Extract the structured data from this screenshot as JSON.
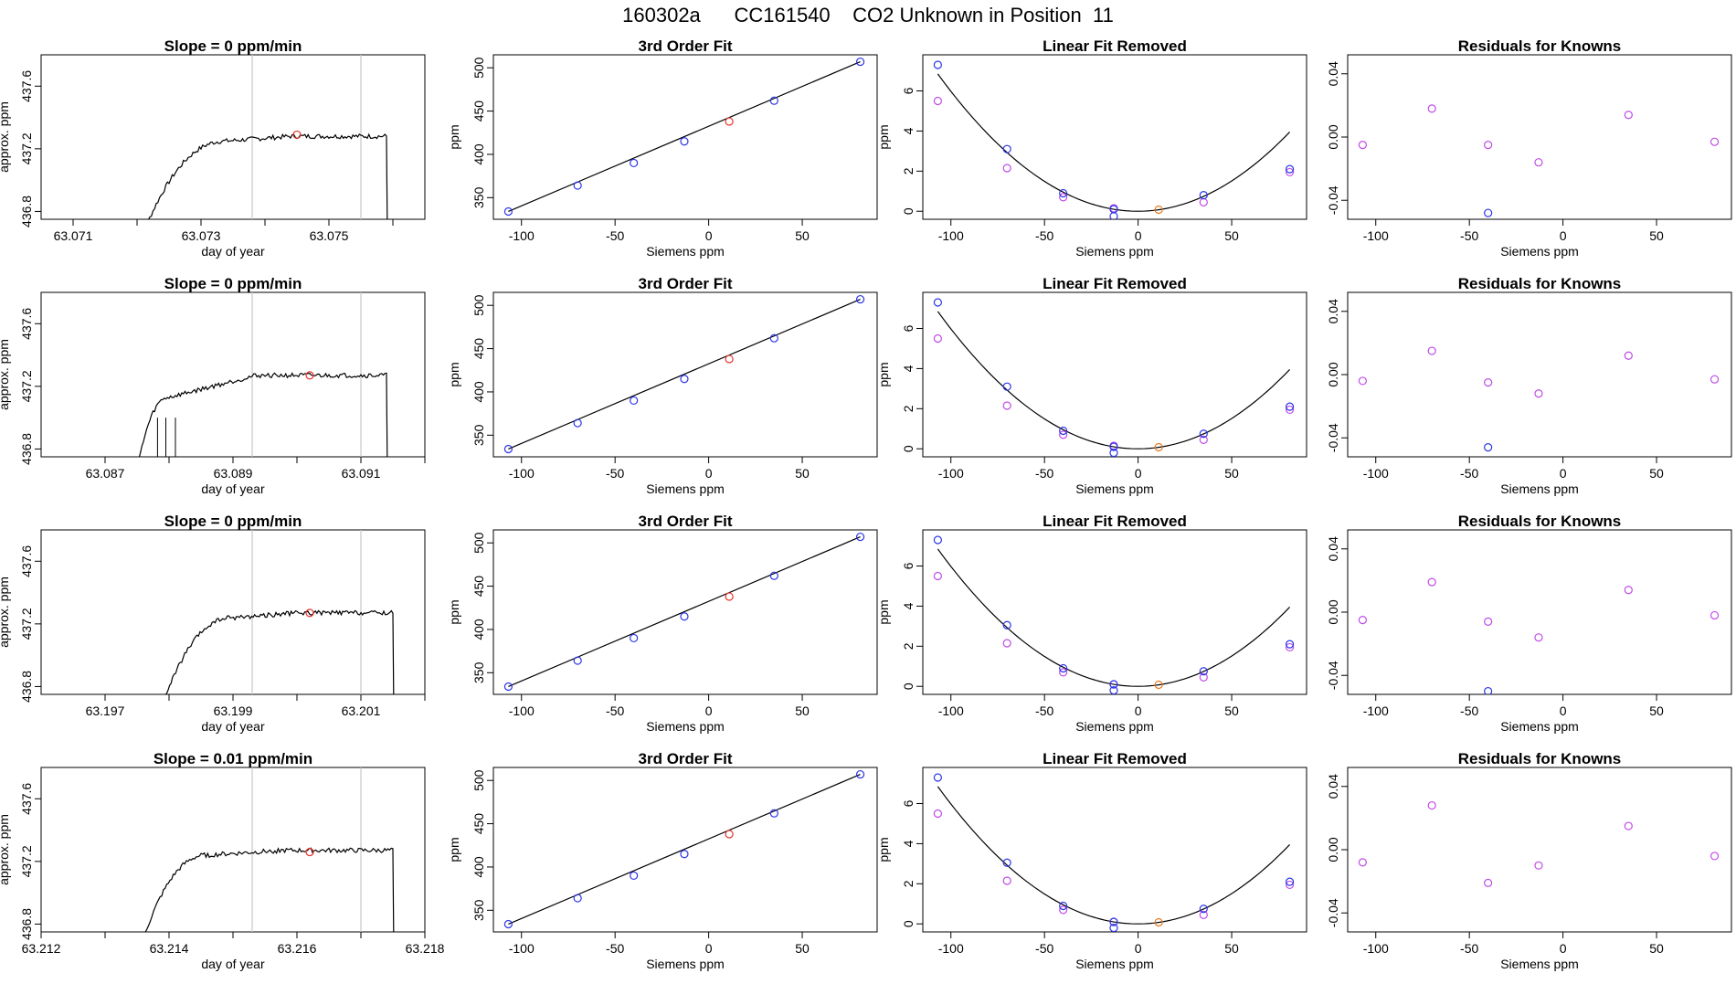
{
  "figure": {
    "title": "160302a      CC161540    CO2 Unknown in Position  11"
  },
  "colors": {
    "trace": "#000000",
    "marker_red": "#e8302a",
    "marker_blue": "#2a35e8",
    "marker_magenta": "#c04ae8",
    "marker_orange": "#e87a1e",
    "vline": "#c8c8c8"
  },
  "chart_data": [
    {
      "id": "r1-slope",
      "type": "line",
      "title": "Slope =  0  ppm/min",
      "xlabel": "day of year",
      "ylabel": "approx. ppm",
      "xlim": [
        63.0705,
        63.0765
      ],
      "ylim": [
        436.75,
        437.8
      ],
      "xticks": [
        "63.071",
        "63.073",
        "63.075"
      ],
      "xtick_values": [
        63.071,
        63.073,
        63.075
      ],
      "xminor": [
        63.072,
        63.074,
        63.076
      ],
      "yticks": [
        "436.8",
        "437.2",
        "437.6"
      ],
      "ytick_values": [
        436.8,
        437.2,
        437.6
      ],
      "vlines": [
        63.0738,
        63.0755
      ],
      "rise": [
        63.0719,
        63.0734,
        437.25
      ],
      "plateau": 437.28,
      "drop": 63.0759,
      "point": {
        "x": 63.0745,
        "y": 437.29
      }
    },
    {
      "id": "r1-fit",
      "type": "scatter",
      "title": "3rd Order Fit",
      "xlabel": "Siemens ppm",
      "ylabel": "ppm",
      "xlim": [
        -115,
        90
      ],
      "ylim": [
        325,
        515
      ],
      "xticks": [
        "-100",
        "-50",
        "0",
        "50"
      ],
      "xtick_values": [
        -100,
        -50,
        0,
        50
      ],
      "yticks": [
        "350",
        "400",
        "450",
        "500"
      ],
      "ytick_values": [
        350,
        400,
        450,
        500
      ],
      "line": [
        [
          -107,
          334
        ],
        [
          81,
          507
        ]
      ],
      "knowns_x": [
        -107,
        -70,
        -40,
        -13,
        35,
        81
      ],
      "knowns_y": [
        334,
        364,
        390,
        415,
        462,
        507
      ],
      "unknown": {
        "x": 11,
        "y": 438
      }
    },
    {
      "id": "r1-lin",
      "type": "scatter",
      "title": "Linear Fit Removed",
      "xlabel": "Siemens ppm",
      "ylabel": "ppm",
      "xlim": [
        -115,
        90
      ],
      "ylim": [
        -0.4,
        7.8
      ],
      "xticks": [
        "-100",
        "-50",
        "0",
        "50"
      ],
      "xtick_values": [
        -100,
        -50,
        0,
        50
      ],
      "yticks": [
        "0",
        "2",
        "4",
        "6"
      ],
      "ytick_values": [
        0,
        2,
        4,
        6
      ],
      "curve_a": 0.0006,
      "curve_b": 0.0002,
      "blue_x": [
        -107,
        -70,
        -40,
        -13,
        35,
        81
      ],
      "blue_y": [
        7.3,
        3.1,
        0.9,
        0.1,
        0.8,
        2.1
      ],
      "magenta_x": [
        -107,
        -70,
        -40,
        -13,
        35,
        81
      ],
      "magenta_y": [
        5.5,
        2.15,
        0.7,
        0.15,
        0.45,
        1.95
      ],
      "low_x": [
        -13
      ],
      "low_y": [
        -0.25
      ],
      "unknown": {
        "x": 11,
        "y": 0.08
      }
    },
    {
      "id": "r1-res",
      "type": "scatter",
      "title": "Residuals for Knowns",
      "xlabel": "Siemens ppm",
      "ylabel": "",
      "xlim": [
        -115,
        90
      ],
      "ylim": [
        -0.052,
        0.052
      ],
      "xticks": [
        "-100",
        "-50",
        "0",
        "50"
      ],
      "xtick_values": [
        -100,
        -50,
        0,
        50
      ],
      "yticks": [
        "-0.04",
        "0.00",
        "0.04"
      ],
      "ytick_values": [
        -0.04,
        0,
        0.04
      ],
      "magenta_x": [
        -107,
        -70,
        -40,
        -13,
        35,
        81
      ],
      "magenta_y": [
        -0.005,
        0.018,
        -0.005,
        -0.016,
        0.014,
        -0.003
      ],
      "blue_x": [
        -40
      ],
      "blue_y": [
        -0.048
      ]
    },
    {
      "id": "r2-slope",
      "type": "line",
      "title": "Slope =  0  ppm/min",
      "xlabel": "day of year",
      "ylabel": "approx. ppm",
      "xlim": [
        63.086,
        63.092
      ],
      "ylim": [
        436.75,
        437.8
      ],
      "xticks": [
        "63.087",
        "63.089",
        "63.091"
      ],
      "xtick_values": [
        63.087,
        63.089,
        63.091
      ],
      "xminor": [
        63.088,
        63.09,
        63.092
      ],
      "yticks": [
        "436.8",
        "437.2",
        "437.6"
      ],
      "ytick_values": [
        436.8,
        437.2,
        437.6
      ],
      "vlines": [
        63.0893,
        63.091
      ],
      "rise": [
        63.0874,
        63.088,
        437.13
      ],
      "plateau": 437.27,
      "drop": 63.0914,
      "spikes": [
        63.08782,
        63.08795,
        63.0881
      ],
      "point": {
        "x": 63.0902,
        "y": 437.27
      }
    },
    {
      "id": "r2-fit",
      "type": "scatter",
      "title": "3rd Order Fit",
      "xlabel": "Siemens ppm",
      "ylabel": "ppm",
      "xlim": [
        -115,
        90
      ],
      "ylim": [
        325,
        515
      ],
      "xticks": [
        "-100",
        "-50",
        "0",
        "50"
      ],
      "xtick_values": [
        -100,
        -50,
        0,
        50
      ],
      "yticks": [
        "350",
        "400",
        "450",
        "500"
      ],
      "ytick_values": [
        350,
        400,
        450,
        500
      ],
      "line": [
        [
          -107,
          334
        ],
        [
          81,
          507
        ]
      ],
      "knowns_x": [
        -107,
        -70,
        -40,
        -13,
        35,
        81
      ],
      "knowns_y": [
        334,
        364,
        390,
        415,
        462,
        507
      ],
      "unknown": {
        "x": 11,
        "y": 438
      }
    },
    {
      "id": "r2-lin",
      "type": "scatter",
      "title": "Linear Fit Removed",
      "xlabel": "Siemens ppm",
      "ylabel": "ppm",
      "xlim": [
        -115,
        90
      ],
      "ylim": [
        -0.4,
        7.8
      ],
      "xticks": [
        "-100",
        "-50",
        "0",
        "50"
      ],
      "xtick_values": [
        -100,
        -50,
        0,
        50
      ],
      "yticks": [
        "0",
        "2",
        "4",
        "6"
      ],
      "ytick_values": [
        0,
        2,
        4,
        6
      ],
      "curve_a": 0.0006,
      "curve_b": 0.0002,
      "blue_x": [
        -107,
        -70,
        -40,
        -13,
        35,
        81
      ],
      "blue_y": [
        7.3,
        3.1,
        0.9,
        0.1,
        0.75,
        2.1
      ],
      "magenta_x": [
        -107,
        -70,
        -40,
        -13,
        35,
        81
      ],
      "magenta_y": [
        5.5,
        2.15,
        0.7,
        0.15,
        0.45,
        1.95
      ],
      "low_x": [
        -13
      ],
      "low_y": [
        -0.2
      ],
      "unknown": {
        "x": 11,
        "y": 0.08
      }
    },
    {
      "id": "r2-res",
      "type": "scatter",
      "title": "Residuals for Knowns",
      "xlabel": "Siemens ppm",
      "ylabel": "",
      "xlim": [
        -115,
        90
      ],
      "ylim": [
        -0.052,
        0.052
      ],
      "xticks": [
        "-100",
        "-50",
        "0",
        "50"
      ],
      "xtick_values": [
        -100,
        -50,
        0,
        50
      ],
      "yticks": [
        "-0.04",
        "0.00",
        "0.04"
      ],
      "ytick_values": [
        -0.04,
        0,
        0.04
      ],
      "magenta_x": [
        -107,
        -70,
        -40,
        -13,
        35,
        81
      ],
      "magenta_y": [
        -0.004,
        0.015,
        -0.005,
        -0.012,
        0.012,
        -0.003
      ],
      "blue_x": [
        -40
      ],
      "blue_y": [
        -0.046
      ]
    },
    {
      "id": "r3-slope",
      "type": "line",
      "title": "Slope =  0  ppm/min",
      "xlabel": "day of year",
      "ylabel": "approx. ppm",
      "xlim": [
        63.196,
        63.202
      ],
      "ylim": [
        436.75,
        437.8
      ],
      "xticks": [
        "63.197",
        "63.199",
        "63.201"
      ],
      "xtick_values": [
        63.197,
        63.199,
        63.201
      ],
      "xminor": [
        63.198,
        63.2,
        63.202
      ],
      "yticks": [
        "436.8",
        "437.2",
        "437.6"
      ],
      "ytick_values": [
        436.8,
        437.2,
        437.6
      ],
      "vlines": [
        63.1993,
        63.201
      ],
      "rise": [
        63.1977,
        63.199,
        437.24
      ],
      "plateau": 437.27,
      "drop": 63.2015,
      "point": {
        "x": 63.2002,
        "y": 437.27
      }
    },
    {
      "id": "r3-fit",
      "type": "scatter",
      "title": "3rd Order Fit",
      "xlabel": "Siemens ppm",
      "ylabel": "ppm",
      "xlim": [
        -115,
        90
      ],
      "ylim": [
        325,
        515
      ],
      "xticks": [
        "-100",
        "-50",
        "0",
        "50"
      ],
      "xtick_values": [
        -100,
        -50,
        0,
        50
      ],
      "yticks": [
        "350",
        "400",
        "450",
        "500"
      ],
      "ytick_values": [
        350,
        400,
        450,
        500
      ],
      "line": [
        [
          -107,
          334
        ],
        [
          81,
          507
        ]
      ],
      "knowns_x": [
        -107,
        -70,
        -40,
        -13,
        35,
        81
      ],
      "knowns_y": [
        334,
        364,
        390,
        415,
        462,
        507
      ],
      "unknown": {
        "x": 11,
        "y": 438
      }
    },
    {
      "id": "r3-lin",
      "type": "scatter",
      "title": "Linear Fit Removed",
      "xlabel": "Siemens ppm",
      "ylabel": "ppm",
      "xlim": [
        -115,
        90
      ],
      "ylim": [
        -0.4,
        7.8
      ],
      "xticks": [
        "-100",
        "-50",
        "0",
        "50"
      ],
      "xtick_values": [
        -100,
        -50,
        0,
        50
      ],
      "yticks": [
        "0",
        "2",
        "4",
        "6"
      ],
      "ytick_values": [
        0,
        2,
        4,
        6
      ],
      "curve_a": 0.0006,
      "curve_b": 0.0002,
      "blue_x": [
        -107,
        -70,
        -40,
        -13,
        35,
        81
      ],
      "blue_y": [
        7.3,
        3.05,
        0.9,
        0.1,
        0.75,
        2.1
      ],
      "magenta_x": [
        -107,
        -70,
        -40,
        -13,
        35,
        81
      ],
      "magenta_y": [
        5.5,
        2.15,
        0.7,
        0.1,
        0.45,
        1.95
      ],
      "low_x": [
        -13
      ],
      "low_y": [
        -0.2
      ],
      "unknown": {
        "x": 11,
        "y": 0.08
      }
    },
    {
      "id": "r3-res",
      "type": "scatter",
      "title": "Residuals for Knowns",
      "xlabel": "Siemens ppm",
      "ylabel": "",
      "xlim": [
        -115,
        90
      ],
      "ylim": [
        -0.052,
        0.052
      ],
      "xticks": [
        "-100",
        "-50",
        "0",
        "50"
      ],
      "xtick_values": [
        -100,
        -50,
        0,
        50
      ],
      "yticks": [
        "-0.04",
        "0.00",
        "0.04"
      ],
      "ytick_values": [
        -0.04,
        0,
        0.04
      ],
      "magenta_x": [
        -107,
        -70,
        -40,
        -13,
        35,
        81
      ],
      "magenta_y": [
        -0.005,
        0.019,
        -0.006,
        -0.016,
        0.014,
        -0.002
      ],
      "blue_x": [
        -40
      ],
      "blue_y": [
        -0.05
      ]
    },
    {
      "id": "r4-slope",
      "type": "line",
      "title": "Slope =  0.01  ppm/min",
      "xlabel": "day of year",
      "ylabel": "approx. ppm",
      "xlim": [
        63.212,
        63.218
      ],
      "ylim": [
        436.75,
        437.8
      ],
      "xticks": [
        "63.212",
        "63.214",
        "63.216",
        "63.218"
      ],
      "xtick_values": [
        63.212,
        63.214,
        63.216,
        63.218
      ],
      "xminor": [
        63.213,
        63.215,
        63.217
      ],
      "yticks": [
        "436.8",
        "437.2",
        "437.6"
      ],
      "ytick_values": [
        436.8,
        437.2,
        437.6
      ],
      "vlines": [
        63.2153,
        63.217
      ],
      "rise": [
        63.2134,
        63.2146,
        437.24
      ],
      "plateau": 437.27,
      "drop": 63.2175,
      "point": {
        "x": 63.2162,
        "y": 437.26
      }
    },
    {
      "id": "r4-fit",
      "type": "scatter",
      "title": "3rd Order Fit",
      "xlabel": "Siemens ppm",
      "ylabel": "ppm",
      "xlim": [
        -115,
        90
      ],
      "ylim": [
        325,
        515
      ],
      "xticks": [
        "-100",
        "-50",
        "0",
        "50"
      ],
      "xtick_values": [
        -100,
        -50,
        0,
        50
      ],
      "yticks": [
        "350",
        "400",
        "450",
        "500"
      ],
      "ytick_values": [
        350,
        400,
        450,
        500
      ],
      "line": [
        [
          -107,
          334
        ],
        [
          81,
          507
        ]
      ],
      "knowns_x": [
        -107,
        -70,
        -40,
        -13,
        35,
        81
      ],
      "knowns_y": [
        334,
        364,
        390,
        415,
        462,
        507
      ],
      "unknown": {
        "x": 11,
        "y": 438
      }
    },
    {
      "id": "r4-lin",
      "type": "scatter",
      "title": "Linear Fit Removed",
      "xlabel": "Siemens ppm",
      "ylabel": "ppm",
      "xlim": [
        -115,
        90
      ],
      "ylim": [
        -0.4,
        7.8
      ],
      "xticks": [
        "-100",
        "-50",
        "0",
        "50"
      ],
      "xtick_values": [
        -100,
        -50,
        0,
        50
      ],
      "yticks": [
        "0",
        "2",
        "4",
        "6"
      ],
      "ytick_values": [
        0,
        2,
        4,
        6
      ],
      "curve_a": 0.0006,
      "curve_b": 0.0002,
      "blue_x": [
        -107,
        -70,
        -40,
        -13,
        35,
        81
      ],
      "blue_y": [
        7.3,
        3.05,
        0.9,
        0.1,
        0.75,
        2.1
      ],
      "magenta_x": [
        -107,
        -70,
        -40,
        -13,
        35,
        81
      ],
      "magenta_y": [
        5.5,
        2.15,
        0.7,
        0.1,
        0.45,
        1.95
      ],
      "low_x": [
        -13
      ],
      "low_y": [
        -0.2
      ],
      "unknown": {
        "x": 11,
        "y": 0.08
      }
    },
    {
      "id": "r4-res",
      "type": "scatter",
      "title": "Residuals for Knowns",
      "xlabel": "Siemens ppm",
      "ylabel": "",
      "xlim": [
        -115,
        90
      ],
      "ylim": [
        -0.052,
        0.052
      ],
      "xticks": [
        "-100",
        "-50",
        "0",
        "50"
      ],
      "xtick_values": [
        -100,
        -50,
        0,
        50
      ],
      "yticks": [
        "-0.04",
        "0.00",
        "0.04"
      ],
      "ytick_values": [
        -0.04,
        0,
        0.04
      ],
      "magenta_x": [
        -107,
        -70,
        -40,
        -13,
        35,
        81
      ],
      "magenta_y": [
        -0.008,
        0.028,
        -0.021,
        -0.01,
        0.015,
        -0.004
      ],
      "blue_x": [],
      "blue_y": []
    }
  ]
}
